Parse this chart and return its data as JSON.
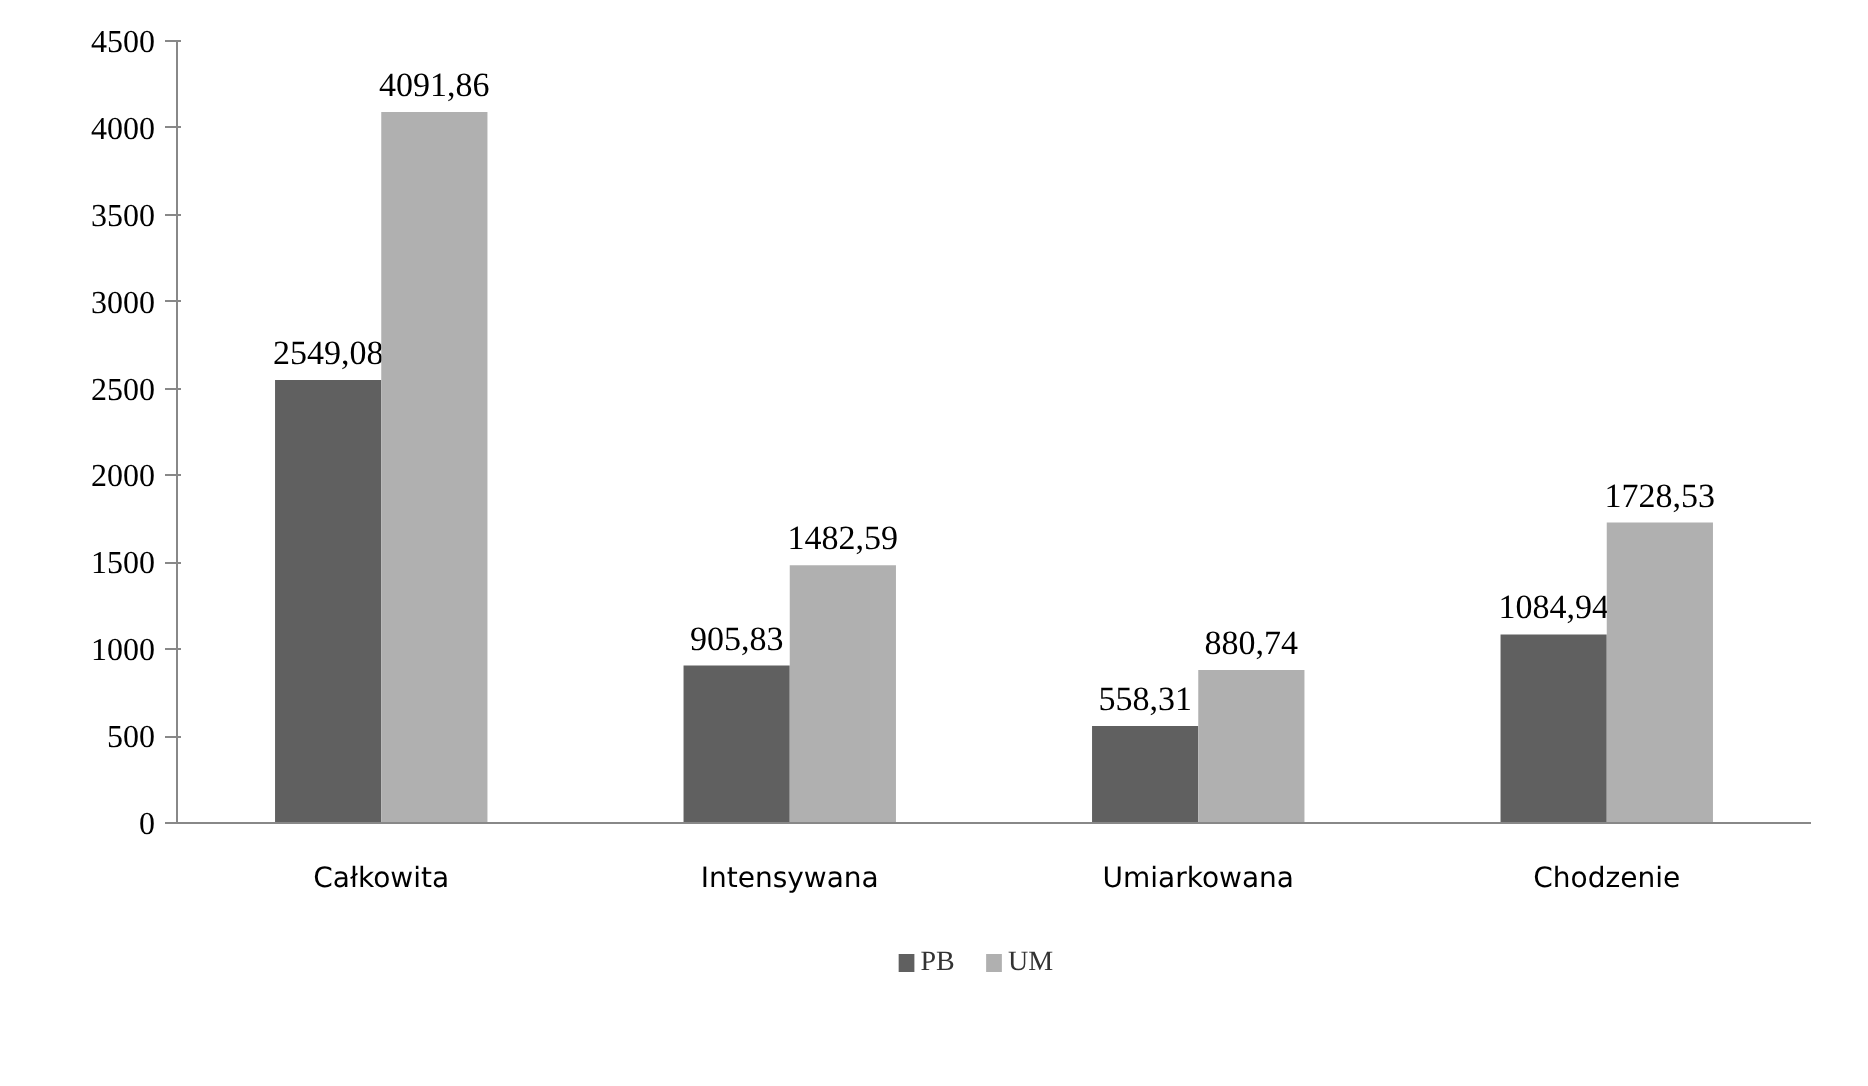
{
  "chart_data": {
    "type": "bar",
    "categories": [
      "Całkowita",
      "Intensywana",
      "Umiarkowana",
      "Chodzenie"
    ],
    "series": [
      {
        "name": "PB",
        "color": "#606060",
        "values": [
          2549.08,
          905.83,
          558.31,
          1084.94
        ],
        "value_labels": [
          "2549,08",
          "905,83",
          "558,31",
          "1084,94"
        ]
      },
      {
        "name": "UM",
        "color": "#b0b0b0",
        "values": [
          4091.86,
          1482.59,
          880.74,
          1728.53
        ],
        "value_labels": [
          "4091,86",
          "1482,59",
          "880,74",
          "1728,53"
        ]
      }
    ],
    "ylim": [
      0,
      4500
    ],
    "yticks": [
      0,
      500,
      1000,
      1500,
      2000,
      2500,
      3000,
      3500,
      4000,
      4500
    ],
    "grid": false,
    "legend": "bottom"
  }
}
